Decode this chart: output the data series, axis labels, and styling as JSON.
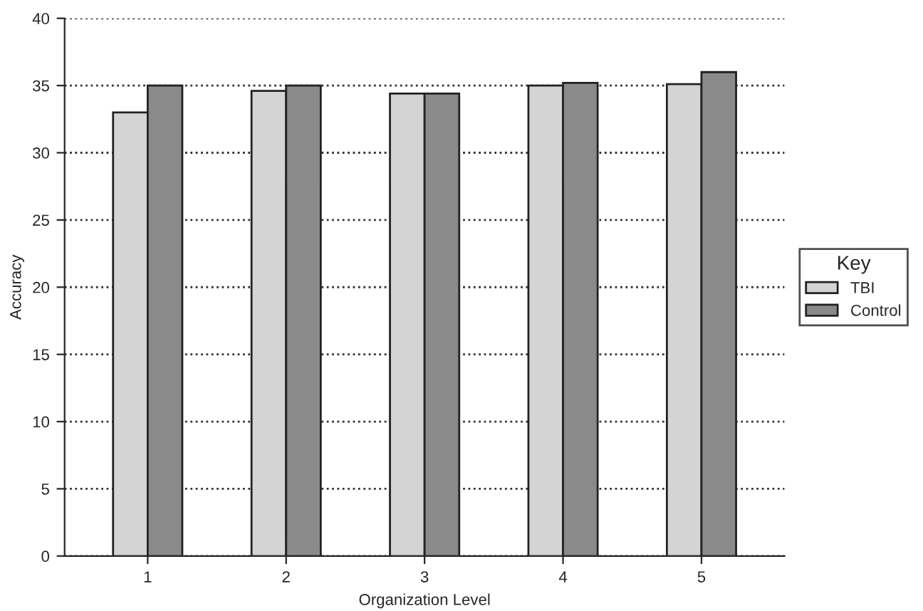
{
  "chart_data": {
    "type": "bar",
    "xlabel": "Organization Level",
    "ylabel": "Accuracy",
    "legend_title": "Key",
    "categories": [
      "1",
      "2",
      "3",
      "4",
      "5"
    ],
    "series": [
      {
        "name": "TBI",
        "color": "#d4d4d4",
        "values": [
          33.0,
          34.6,
          34.4,
          35.0,
          35.1
        ]
      },
      {
        "name": "Control",
        "color": "#8a8a8a",
        "values": [
          35.0,
          35.0,
          34.4,
          35.2,
          36.0
        ]
      }
    ],
    "ylim": [
      0,
      40
    ],
    "yticks": [
      0,
      5,
      10,
      15,
      20,
      25,
      30,
      35,
      40
    ],
    "grid": "y",
    "legend": "right"
  }
}
